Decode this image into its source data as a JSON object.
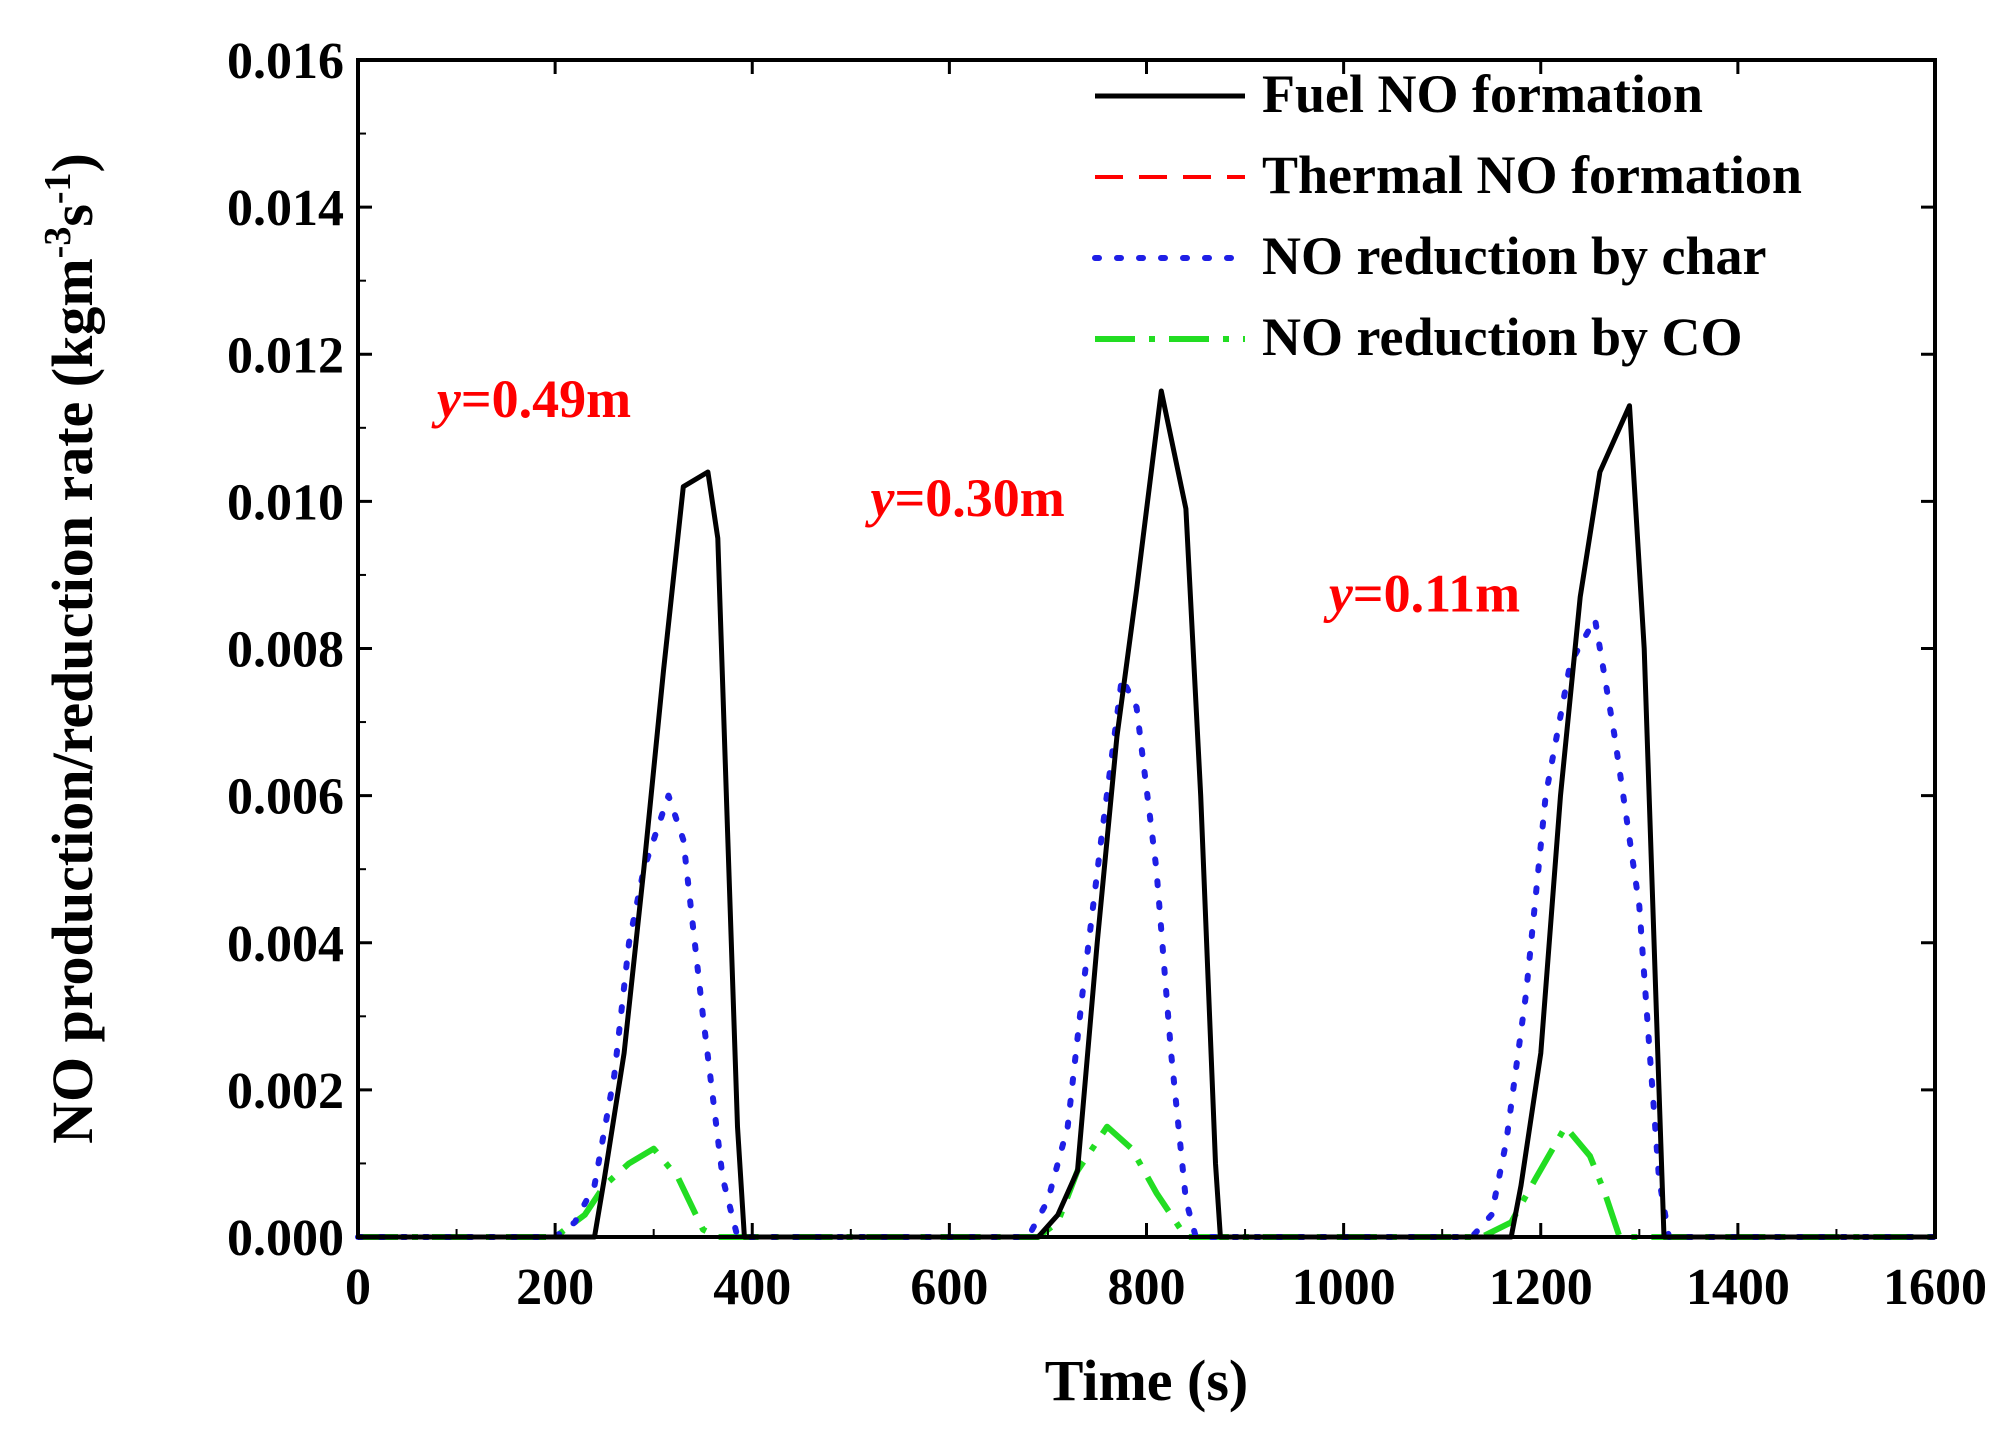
{
  "chart_data": {
    "type": "line",
    "title": "",
    "xlabel": "Time (s)",
    "ylabel_main": "NO production/reduction rate (kgm",
    "ylabel_sup1": "-3",
    "ylabel_mid": "s",
    "ylabel_sup2": "-1",
    "ylabel_close": ")",
    "xlim": [
      0,
      1600
    ],
    "ylim": [
      0,
      0.016
    ],
    "xticks": [
      0,
      200,
      400,
      600,
      800,
      1000,
      1200,
      1400,
      1600
    ],
    "xtick_labels": [
      "0",
      "200",
      "400",
      "600",
      "800",
      "1000",
      "1200",
      "1400",
      "1600"
    ],
    "yticks": [
      0,
      0.002,
      0.004,
      0.006,
      0.008,
      0.01,
      0.012,
      0.014,
      0.016
    ],
    "ytick_labels": [
      "0.000",
      "0.002",
      "0.004",
      "0.006",
      "0.008",
      "0.010",
      "0.012",
      "0.014",
      "0.016"
    ],
    "grid": false,
    "legend_position": "top-right",
    "series": [
      {
        "name": "Fuel NO formation",
        "color": "#000000",
        "dash": "solid",
        "points": [
          [
            0,
            0
          ],
          [
            240,
            0
          ],
          [
            250,
            0.0008
          ],
          [
            270,
            0.0025
          ],
          [
            290,
            0.005
          ],
          [
            310,
            0.0077
          ],
          [
            330,
            0.0102
          ],
          [
            355,
            0.0104
          ],
          [
            365,
            0.0095
          ],
          [
            375,
            0.0055
          ],
          [
            385,
            0.0015
          ],
          [
            392,
            0
          ],
          [
            690,
            0
          ],
          [
            710,
            0.0003
          ],
          [
            730,
            0.0009
          ],
          [
            750,
            0.004
          ],
          [
            770,
            0.0068
          ],
          [
            790,
            0.0088
          ],
          [
            815,
            0.0115
          ],
          [
            840,
            0.0099
          ],
          [
            855,
            0.006
          ],
          [
            870,
            0.001
          ],
          [
            875,
            0
          ],
          [
            1170,
            0
          ],
          [
            1180,
            0.0007
          ],
          [
            1200,
            0.0025
          ],
          [
            1220,
            0.006
          ],
          [
            1240,
            0.0087
          ],
          [
            1260,
            0.0104
          ],
          [
            1290,
            0.0113
          ],
          [
            1305,
            0.008
          ],
          [
            1320,
            0.002
          ],
          [
            1325,
            0
          ],
          [
            1600,
            0
          ]
        ]
      },
      {
        "name": "Thermal NO formation",
        "color": "#ff0000",
        "dash": "dashed",
        "points": [
          [
            0,
            0
          ],
          [
            1600,
            0
          ]
        ]
      },
      {
        "name": "NO reduction by char",
        "color": "#1f1fe6",
        "dash": "dotted",
        "points": [
          [
            0,
            0
          ],
          [
            200,
            0
          ],
          [
            220,
            0.0002
          ],
          [
            240,
            0.0007
          ],
          [
            260,
            0.0022
          ],
          [
            275,
            0.004
          ],
          [
            290,
            0.005
          ],
          [
            315,
            0.006
          ],
          [
            330,
            0.0054
          ],
          [
            350,
            0.003
          ],
          [
            370,
            0.0008
          ],
          [
            385,
            0
          ],
          [
            680,
            0
          ],
          [
            700,
            0.0005
          ],
          [
            720,
            0.0015
          ],
          [
            735,
            0.0033
          ],
          [
            755,
            0.0055
          ],
          [
            775,
            0.0076
          ],
          [
            790,
            0.0072
          ],
          [
            810,
            0.005
          ],
          [
            825,
            0.0025
          ],
          [
            840,
            0.0005
          ],
          [
            850,
            0
          ],
          [
            1130,
            0
          ],
          [
            1150,
            0.0003
          ],
          [
            1165,
            0.0013
          ],
          [
            1185,
            0.0033
          ],
          [
            1205,
            0.006
          ],
          [
            1230,
            0.0078
          ],
          [
            1255,
            0.0084
          ],
          [
            1275,
            0.0068
          ],
          [
            1300,
            0.0045
          ],
          [
            1310,
            0.0026
          ],
          [
            1320,
            0.0008
          ],
          [
            1330,
            0
          ],
          [
            1600,
            0
          ]
        ]
      },
      {
        "name": "NO reduction by CO",
        "color": "#22dd22",
        "dash": "dashdot",
        "points": [
          [
            0,
            0
          ],
          [
            200,
            0
          ],
          [
            230,
            0.0003
          ],
          [
            250,
            0.0007
          ],
          [
            275,
            0.001
          ],
          [
            300,
            0.0012
          ],
          [
            325,
            0.0008
          ],
          [
            350,
            0.0001
          ],
          [
            365,
            0
          ],
          [
            690,
            0
          ],
          [
            710,
            0.0002
          ],
          [
            730,
            0.0009
          ],
          [
            760,
            0.0015
          ],
          [
            785,
            0.0012
          ],
          [
            810,
            0.0006
          ],
          [
            840,
            0
          ],
          [
            1140,
            0
          ],
          [
            1170,
            0.0002
          ],
          [
            1195,
            0.0008
          ],
          [
            1225,
            0.0015
          ],
          [
            1250,
            0.0011
          ],
          [
            1265,
            0.0006
          ],
          [
            1280,
            0
          ],
          [
            1600,
            0
          ]
        ]
      }
    ],
    "annotations": [
      {
        "prefix": "y",
        "text": "=0.49m",
        "color": "#ff0000",
        "x": 80,
        "y": 0.01115
      },
      {
        "prefix": "y",
        "text": "=0.30m",
        "color": "#ff0000",
        "x": 520,
        "y": 0.0098
      },
      {
        "prefix": "y",
        "text": "=0.11m",
        "color": "#ff0000",
        "x": 985,
        "y": 0.0085
      }
    ]
  }
}
